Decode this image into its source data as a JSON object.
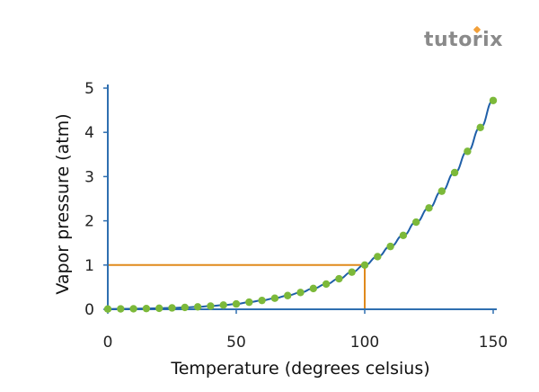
{
  "logo_text": "tutorix",
  "colors": {
    "axis": "#2f6fb0",
    "curve": "#1f5fa8",
    "points": "#7cb93a",
    "reference_line": "#e08a1c",
    "logo": "#8a8a8a",
    "logo_accent": "#f2a03a"
  },
  "chart_data": {
    "type": "scatter",
    "title": "",
    "xlabel": "Temperature (degrees celsius)",
    "ylabel": "Vapor pressure (atm)",
    "xlim": [
      0,
      150
    ],
    "ylim": [
      0,
      5
    ],
    "xticks": [
      0,
      50,
      100,
      150
    ],
    "yticks": [
      0,
      1,
      2,
      3,
      4,
      5
    ],
    "grid": false,
    "legend": "none",
    "series": [
      {
        "x": [
          0,
          5,
          10,
          15,
          20,
          25,
          30,
          35,
          40,
          45,
          50,
          55,
          60,
          65,
          70,
          75,
          80,
          85,
          90,
          95,
          100,
          105,
          110,
          115,
          120,
          125,
          130,
          135,
          140,
          145,
          150
        ],
        "y": [
          0.006,
          0.009,
          0.012,
          0.017,
          0.023,
          0.031,
          0.042,
          0.055,
          0.073,
          0.095,
          0.12,
          0.16,
          0.2,
          0.25,
          0.31,
          0.38,
          0.47,
          0.57,
          0.69,
          0.84,
          1.0,
          1.19,
          1.42,
          1.67,
          1.97,
          2.29,
          2.67,
          3.09,
          3.57,
          4.11,
          4.72
        ]
      }
    ],
    "annotations": [
      {
        "type": "reference_lines",
        "x": 100,
        "y": 1
      }
    ]
  }
}
